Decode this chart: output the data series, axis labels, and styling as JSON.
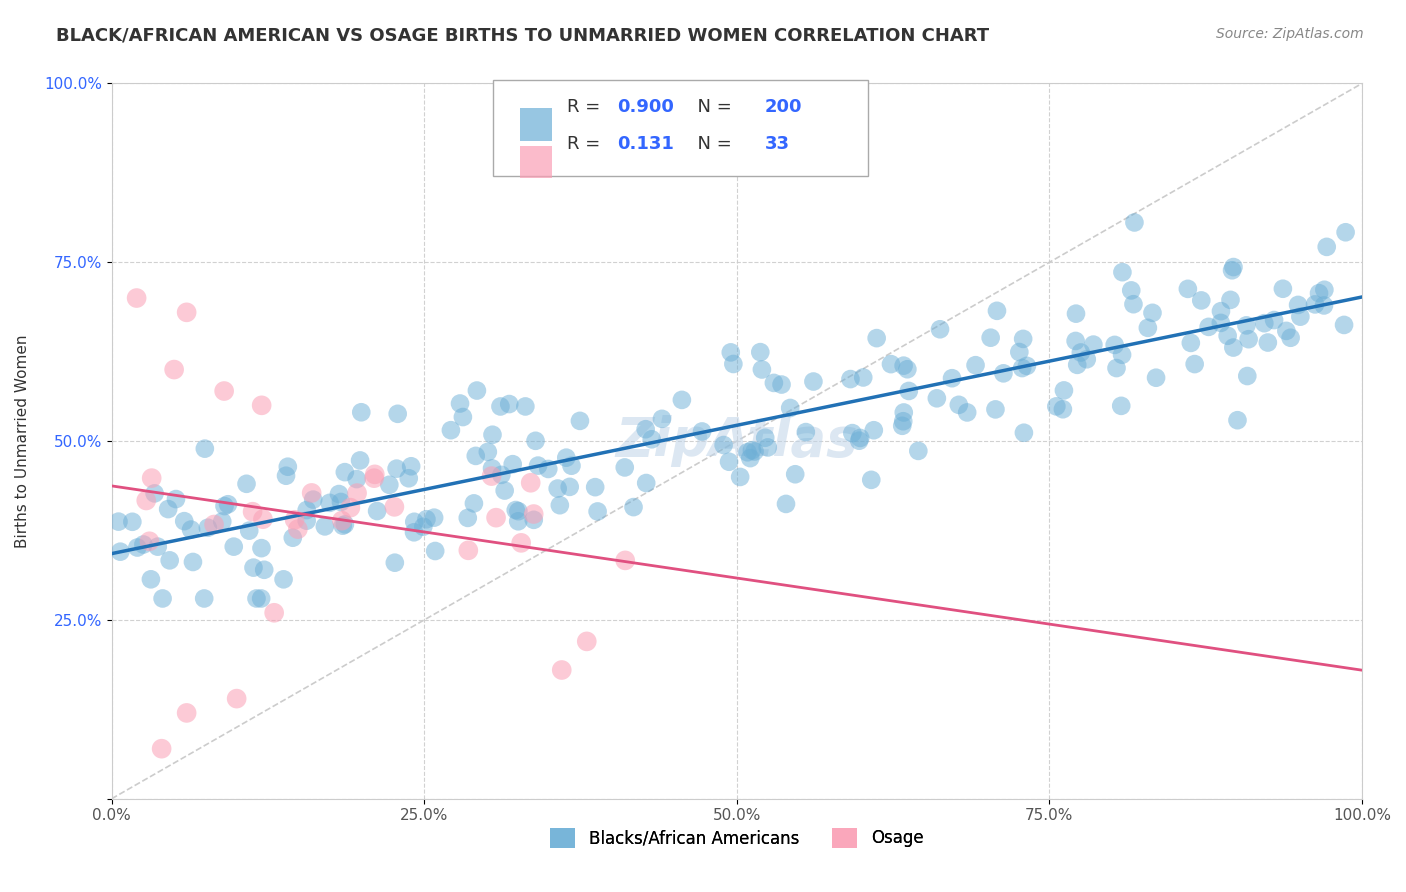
{
  "title": "BLACK/AFRICAN AMERICAN VS OSAGE BIRTHS TO UNMARRIED WOMEN CORRELATION CHART",
  "source": "Source: ZipAtlas.com",
  "ylabel": "Births to Unmarried Women",
  "watermark": "ZipAtlas",
  "blue_R": 0.9,
  "blue_N": 200,
  "pink_R": 0.131,
  "pink_N": 33,
  "blue_color": "#6baed6",
  "pink_color": "#fa9fb5",
  "blue_line_color": "#2171b5",
  "pink_line_color": "#e05080",
  "diagonal_color": "#cccccc",
  "grid_color": "#cccccc",
  "background_color": "#ffffff",
  "xlim": [
    0.0,
    1.0
  ],
  "ylim": [
    0.0,
    1.0
  ],
  "xticks": [
    0.0,
    0.25,
    0.5,
    0.75,
    1.0
  ],
  "yticks": [
    0.0,
    0.25,
    0.5,
    0.75,
    1.0
  ],
  "xtick_labels": [
    "0.0%",
    "25.0%",
    "50.0%",
    "75.0%",
    "100.0%"
  ],
  "ytick_labels": [
    "",
    "25.0%",
    "50.0%",
    "75.0%",
    "100.0%"
  ],
  "legend_labels": [
    "Blacks/African Americans",
    "Osage"
  ],
  "title_fontsize": 13,
  "source_fontsize": 10,
  "axis_fontsize": 11,
  "tick_fontsize": 11,
  "legend_fontsize": 12,
  "watermark_fontsize": 38,
  "watermark_color": "#c0d4e8",
  "watermark_alpha": 0.55,
  "value_color": "#3366ff",
  "legend_box_edge": "#aaaaaa"
}
